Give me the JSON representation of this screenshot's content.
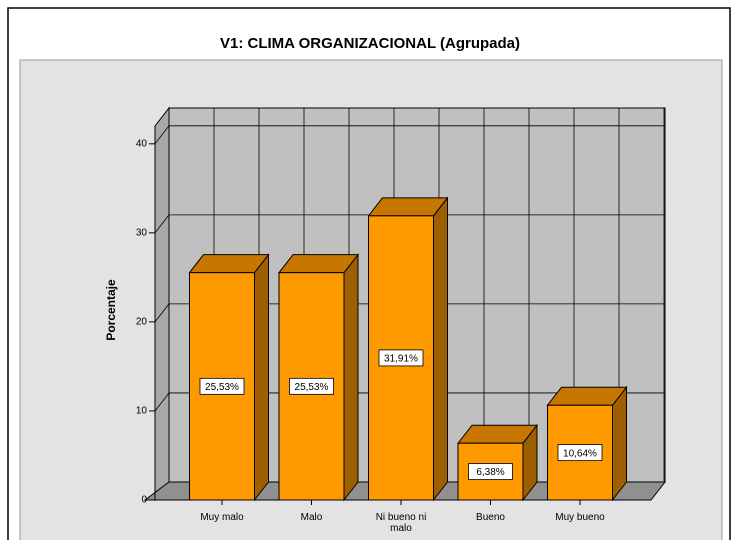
{
  "chart_data": {
    "type": "bar3d",
    "title": "V1: CLIMA ORGANIZACIONAL (Agrupada)",
    "y_label": "Porcentaje",
    "categories": [
      "Muy malo",
      "Malo",
      "Ni bueno ni malo",
      "Bueno",
      "Muy bueno"
    ],
    "values": [
      25.53,
      25.53,
      31.91,
      6.38,
      10.64
    ],
    "value_labels": [
      "25,53%",
      "25,53%",
      "31,91%",
      "6,38%",
      "10,64%"
    ],
    "color": "#ff9900",
    "ylim": [
      0,
      42
    ],
    "yticks": [
      0,
      10,
      20,
      30,
      40
    ],
    "grid": true
  }
}
